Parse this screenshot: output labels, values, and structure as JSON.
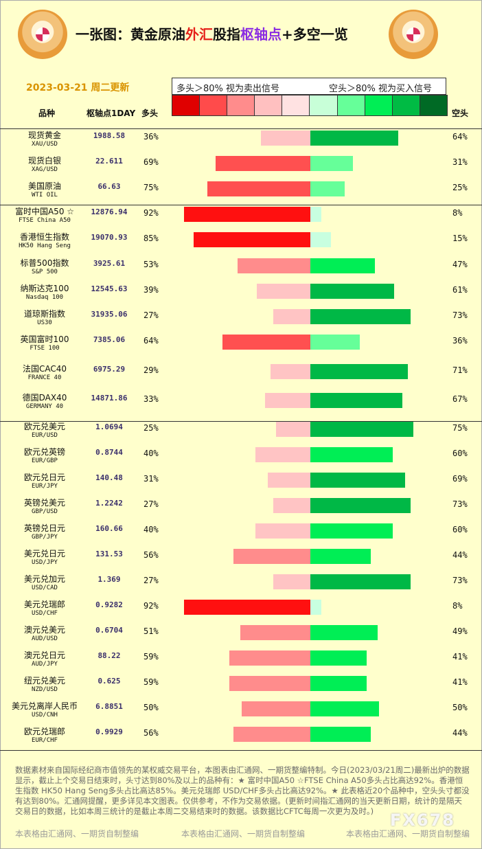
{
  "header": {
    "title_parts": [
      {
        "text": "一张图：黄金原油",
        "color": "black"
      },
      {
        "text": "外汇",
        "color": "red"
      },
      {
        "text": "股指",
        "color": "black"
      },
      {
        "text": "枢轴点",
        "color": "purple"
      },
      {
        "text": "+多空一览",
        "color": "black"
      }
    ],
    "date": "2023-03-21 周二更新",
    "legend_left": "多头＞80% 视为卖出信号",
    "legend_right": "空头＞80% 视为买入信号",
    "swatch_colors": [
      "#e00000",
      "#ff4b4b",
      "#ff8c8c",
      "#ffc0c0",
      "#ffe2e2",
      "#c8ffd8",
      "#66ff99",
      "#00ee55",
      "#00bb44",
      "#006a25"
    ]
  },
  "columns": {
    "name": "品种",
    "pivot": "枢轴点1DAY",
    "long": "多头",
    "short": "空头"
  },
  "colors": {
    "long_strong": "#ff1010",
    "long_mid": "#ff5050",
    "long_light": "#ff8c8c",
    "long_pale": "#ffc4c4",
    "short_pale": "#c8ffe0",
    "short_light": "#66ff99",
    "short_mid": "#00ee55",
    "short_strong": "#00b846"
  },
  "chart_data": {
    "type": "bar",
    "categories": [
      "现货黄金",
      "现货白银",
      "美国原油",
      "富时中国A50 ☆",
      "香港恒生指数",
      "标普500指数",
      "纳斯达克100",
      "道琼斯指数",
      "英国富时100",
      "法国CAC40",
      "德国DAX40",
      "欧元兑美元",
      "欧元兑英镑",
      "欧元兑日元",
      "英镑兑美元",
      "英镑兑日元",
      "美元兑日元",
      "美元兑加元",
      "美元兑瑞郎",
      "澳元兑美元",
      "澳元兑日元",
      "纽元兑美元",
      "美元兑离岸人民币",
      "欧元兑瑞郎"
    ],
    "series": [
      {
        "name": "多头",
        "values": [
          36,
          69,
          75,
          92,
          85,
          53,
          39,
          27,
          64,
          29,
          33,
          25,
          40,
          31,
          27,
          40,
          56,
          27,
          92,
          51,
          59,
          59,
          50,
          56
        ]
      },
      {
        "name": "空头",
        "values": [
          64,
          31,
          25,
          8,
          15,
          47,
          61,
          73,
          36,
          71,
          67,
          75,
          60,
          69,
          73,
          60,
          44,
          73,
          8,
          49,
          41,
          41,
          50,
          44
        ]
      }
    ],
    "ylim": [
      0,
      100
    ]
  },
  "rows": [
    {
      "cn": "现货黄金",
      "en": "XAU/USD",
      "pivot": "1988.58",
      "long": 36,
      "short": 64,
      "long_label": "36%",
      "short_label": "64%"
    },
    {
      "cn": "现货白银",
      "en": "XAG/USD",
      "pivot": "22.611",
      "long": 69,
      "short": 31,
      "long_label": "69%",
      "short_label": "31%"
    },
    {
      "cn": "美国原油",
      "en": "WTI OIL",
      "pivot": "66.63",
      "long": 75,
      "short": 25,
      "long_label": "75%",
      "short_label": "25%"
    },
    {
      "cn": "富时中国A50 ☆",
      "en": "FTSE China A50",
      "pivot": "12876.94",
      "long": 92,
      "short": 8,
      "long_label": "92%",
      "short_label": "8%"
    },
    {
      "cn": "香港恒生指数",
      "en": "HK50 Hang Seng",
      "pivot": "19070.93",
      "long": 85,
      "short": 15,
      "long_label": "85%",
      "short_label": "15%"
    },
    {
      "cn": "标普500指数",
      "en": "S&P 500",
      "pivot": "3925.61",
      "long": 53,
      "short": 47,
      "long_label": "53%",
      "short_label": "47%"
    },
    {
      "cn": "纳斯达克100",
      "en": "Nasdaq 100",
      "pivot": "12545.63",
      "long": 39,
      "short": 61,
      "long_label": "39%",
      "short_label": "61%"
    },
    {
      "cn": "道琼斯指数",
      "en": "US30",
      "pivot": "31935.06",
      "long": 27,
      "short": 73,
      "long_label": "27%",
      "short_label": "73%"
    },
    {
      "cn": "英国富时100",
      "en": "FTSE 100",
      "pivot": "7385.06",
      "long": 64,
      "short": 36,
      "long_label": "64%",
      "short_label": "36%"
    },
    {
      "cn": "法国CAC40",
      "en": "FRANCE 40",
      "pivot": "6975.29",
      "long": 29,
      "short": 71,
      "long_label": "29%",
      "short_label": "71%"
    },
    {
      "cn": "德国DAX40",
      "en": "GERMANY 40",
      "pivot": "14871.86",
      "long": 33,
      "short": 67,
      "long_label": "33%",
      "short_label": "67%"
    },
    {
      "cn": "欧元兑美元",
      "en": "EUR/USD",
      "pivot": "1.0694",
      "long": 25,
      "short": 75,
      "long_label": "25%",
      "short_label": "75%"
    },
    {
      "cn": "欧元兑英镑",
      "en": "EUR/GBP",
      "pivot": "0.8744",
      "long": 40,
      "short": 60,
      "long_label": "40%",
      "short_label": "60%"
    },
    {
      "cn": "欧元兑日元",
      "en": "EUR/JPY",
      "pivot": "140.48",
      "long": 31,
      "short": 69,
      "long_label": "31%",
      "short_label": "69%"
    },
    {
      "cn": "英镑兑美元",
      "en": "GBP/USD",
      "pivot": "1.2242",
      "long": 27,
      "short": 73,
      "long_label": "27%",
      "short_label": "73%"
    },
    {
      "cn": "英镑兑日元",
      "en": "GBP/JPY",
      "pivot": "160.66",
      "long": 40,
      "short": 60,
      "long_label": "40%",
      "short_label": "60%"
    },
    {
      "cn": "美元兑日元",
      "en": "USD/JPY",
      "pivot": "131.53",
      "long": 56,
      "short": 44,
      "long_label": "56%",
      "short_label": "44%"
    },
    {
      "cn": "美元兑加元",
      "en": "USD/CAD",
      "pivot": "1.369",
      "long": 27,
      "short": 73,
      "long_label": "27%",
      "short_label": "73%"
    },
    {
      "cn": "美元兑瑞郎",
      "en": "USD/CHF",
      "pivot": "0.9282",
      "long": 92,
      "short": 8,
      "long_label": "92%",
      "short_label": "8%"
    },
    {
      "cn": "澳元兑美元",
      "en": "AUD/USD",
      "pivot": "0.6704",
      "long": 51,
      "short": 49,
      "long_label": "51%",
      "short_label": "49%"
    },
    {
      "cn": "澳元兑日元",
      "en": "AUD/JPY",
      "pivot": "88.22",
      "long": 59,
      "short": 41,
      "long_label": "59%",
      "short_label": "41%"
    },
    {
      "cn": "纽元兑美元",
      "en": "NZD/USD",
      "pivot": "0.625",
      "long": 59,
      "short": 41,
      "long_label": "59%",
      "short_label": "41%"
    },
    {
      "cn": "美元兑离岸人民币",
      "en": "USD/CNH",
      "pivot": "6.8851",
      "long": 50,
      "short": 50,
      "long_label": "50%",
      "short_label": "50%"
    },
    {
      "cn": "欧元兑瑞郎",
      "en": "EUR/CHF",
      "pivot": "0.9929",
      "long": 56,
      "short": 44,
      "long_label": "56%",
      "short_label": "44%"
    }
  ],
  "footnote": "数据素材来自国际经纪商市值领先的某权威交易平台，本图表由汇通网、一期货整编特制。今日(2023/03/21周二)最新出炉的数据显示，截止上个交易日结束时，头寸达到80%及以上的品种有：★ 富时中国A50 ☆FTSE China A50多头占比高达92%。香港恒生指数 HK50 Hang Seng多头占比高达85%。美元兑瑞郎 USD/CHF多头占比高达92%。★ 此表格近20个品种中，空头头寸都没有达到80%。汇通网提醒，更多详见本文图表。仅供参考，不作为交易依据。(更新时间指汇通网的当天更新日期，统计的是隔天交易日的数据，比如本周三统计的是截止本周二交易结束时的数据。该数据比CFTC每周一次更为及时。)",
  "watermark": "本表格由汇通网、一期货自制整编",
  "fx_mark": "FX678"
}
